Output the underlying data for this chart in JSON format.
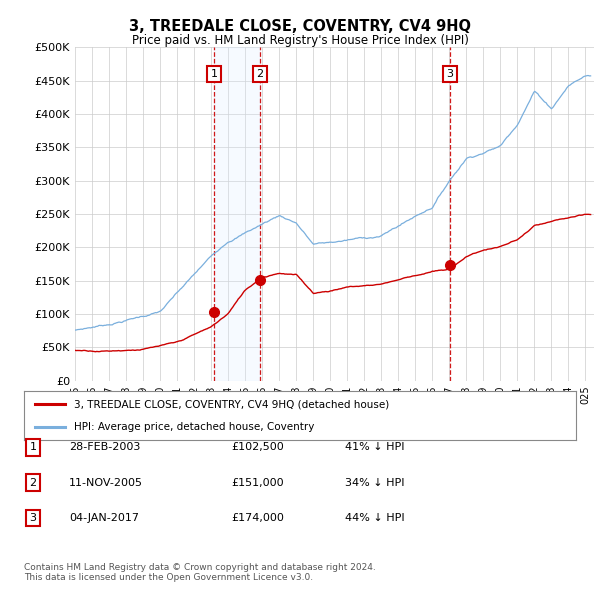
{
  "title": "3, TREEDALE CLOSE, COVENTRY, CV4 9HQ",
  "subtitle": "Price paid vs. HM Land Registry's House Price Index (HPI)",
  "ylabel_ticks": [
    "£0",
    "£50K",
    "£100K",
    "£150K",
    "£200K",
    "£250K",
    "£300K",
    "£350K",
    "£400K",
    "£450K",
    "£500K"
  ],
  "ytick_values": [
    0,
    50000,
    100000,
    150000,
    200000,
    250000,
    300000,
    350000,
    400000,
    450000,
    500000
  ],
  "ylim": [
    0,
    500000
  ],
  "xlim_start": 1995.0,
  "xlim_end": 2025.5,
  "hpi_color": "#7aafdd",
  "price_color": "#cc0000",
  "vline_color": "#cc0000",
  "shade_color": "#ddeeff",
  "transaction_dates": [
    2003.16,
    2005.87,
    2017.02
  ],
  "transaction_prices": [
    102500,
    151000,
    174000
  ],
  "transaction_labels": [
    "1",
    "2",
    "3"
  ],
  "legend_label_red": "3, TREEDALE CLOSE, COVENTRY, CV4 9HQ (detached house)",
  "legend_label_blue": "HPI: Average price, detached house, Coventry",
  "table_data": [
    [
      "1",
      "28-FEB-2003",
      "£102,500",
      "41% ↓ HPI"
    ],
    [
      "2",
      "11-NOV-2005",
      "£151,000",
      "34% ↓ HPI"
    ],
    [
      "3",
      "04-JAN-2017",
      "£174,000",
      "44% ↓ HPI"
    ]
  ],
  "footer": "Contains HM Land Registry data © Crown copyright and database right 2024.\nThis data is licensed under the Open Government Licence v3.0.",
  "background_color": "#ffffff",
  "grid_color": "#cccccc",
  "hpi_anchors_years": [
    1995,
    1997,
    2000,
    2003,
    2004,
    2007,
    2008,
    2009,
    2010,
    2013,
    2014,
    2016,
    2017,
    2018,
    2020,
    2021,
    2022,
    2023,
    2024,
    2025
  ],
  "hpi_anchors_vals": [
    75000,
    85000,
    105000,
    185000,
    210000,
    250000,
    240000,
    208000,
    210000,
    220000,
    235000,
    265000,
    305000,
    340000,
    360000,
    395000,
    445000,
    420000,
    455000,
    470000
  ],
  "price_anchors_years": [
    1995,
    1997,
    1999,
    2001,
    2003,
    2004,
    2005,
    2006,
    2007,
    2008,
    2009,
    2010,
    2011,
    2012,
    2013,
    2014,
    2015,
    2016,
    2017,
    2018,
    2019,
    2020,
    2021,
    2022,
    2023,
    2024,
    2025
  ],
  "price_anchors_vals": [
    45000,
    46000,
    50000,
    58000,
    80000,
    100000,
    135000,
    155000,
    163000,
    160000,
    133000,
    137000,
    143000,
    145000,
    148000,
    155000,
    162000,
    168000,
    170000,
    190000,
    200000,
    205000,
    215000,
    235000,
    240000,
    245000,
    248000
  ]
}
